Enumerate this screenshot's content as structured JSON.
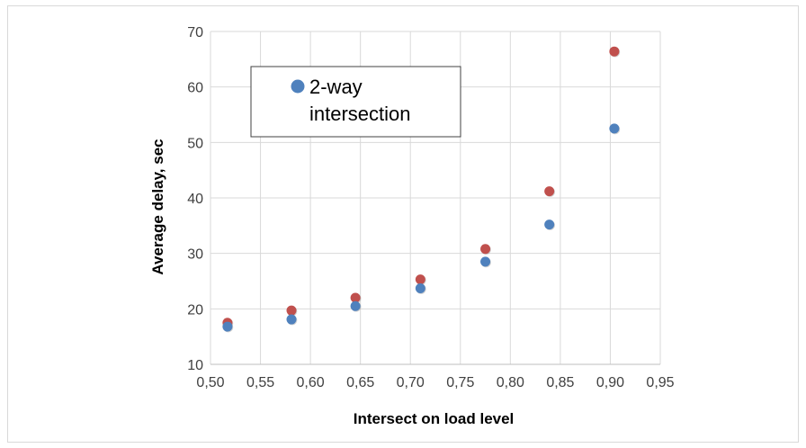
{
  "chart_data": {
    "type": "scatter",
    "title": "",
    "xlabel": "Intersect on load level",
    "ylabel": "Average delay, sec",
    "xlim": [
      0.5,
      0.95
    ],
    "ylim": [
      10,
      70
    ],
    "x_ticks": [
      "0,50",
      "0,55",
      "0,60",
      "0,65",
      "0,70",
      "0,75",
      "0,80",
      "0,85",
      "0,90",
      "0,95"
    ],
    "y_ticks": [
      "10",
      "20",
      "30",
      "40",
      "50",
      "60",
      "70"
    ],
    "grid": true,
    "legend_position": "top-left",
    "series": [
      {
        "name": "2-way intersection",
        "color": "#4f81bd",
        "x": [
          0.517,
          0.581,
          0.645,
          0.71,
          0.775,
          0.839,
          0.904
        ],
        "y": [
          16.8,
          18.1,
          20.5,
          23.7,
          28.5,
          35.2,
          52.5
        ]
      },
      {
        "name": "",
        "color": "#c0504d",
        "x": [
          0.517,
          0.581,
          0.645,
          0.71,
          0.775,
          0.839,
          0.904
        ],
        "y": [
          17.5,
          19.7,
          22.0,
          25.3,
          30.8,
          41.2,
          66.4
        ]
      }
    ]
  }
}
